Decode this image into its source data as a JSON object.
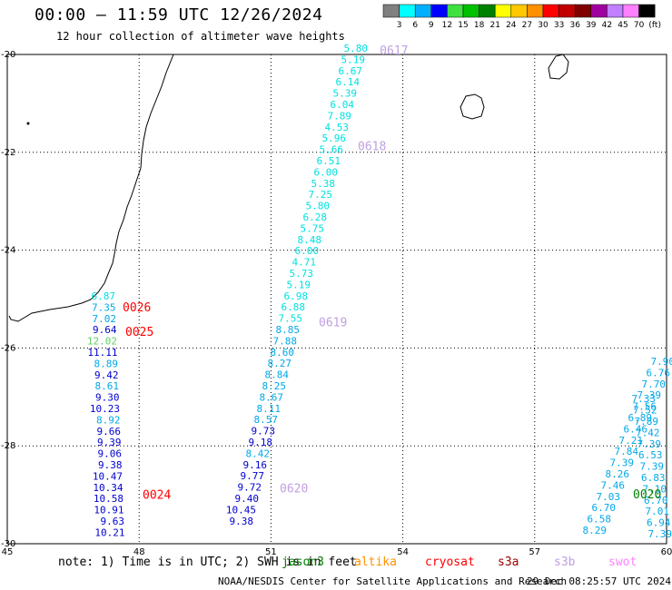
{
  "title": "00:00 – 11:59 UTC 12/26/2024",
  "subtitle": "12 hour collection of altimeter wave heights",
  "legend": {
    "colors": [
      "#808080",
      "#00ffff",
      "#00b0ff",
      "#0000ff",
      "#40e040",
      "#00c000",
      "#008000",
      "#ffff00",
      "#ffc800",
      "#ff9000",
      "#ff0000",
      "#c00000",
      "#800000",
      "#a000a0",
      "#c080ff",
      "#ff80ff",
      "#000000"
    ],
    "labels": [
      "3",
      "6",
      "9",
      "12",
      "15",
      "18",
      "21",
      "24",
      "27",
      "30",
      "33",
      "36",
      "39",
      "42",
      "45",
      "70",
      "(ft)"
    ]
  },
  "axes": {
    "lon_ticks": [
      "45",
      "48",
      "51",
      "54",
      "57",
      "60"
    ],
    "lat_ticks": [
      "-20",
      "-22",
      "-24",
      "-26",
      "-28",
      "-30"
    ]
  },
  "note": {
    "prefix": "note: 1) Time is in UTC; 2) SWH is in feet",
    "missions": [
      {
        "name": "jason3",
        "color": "#008000"
      },
      {
        "name": "altika",
        "color": "#ff9000"
      },
      {
        "name": "cryosat",
        "color": "#ff0000"
      },
      {
        "name": "s3a",
        "color": "#a00000"
      },
      {
        "name": "s3b",
        "color": "#c0a0e0"
      },
      {
        "name": "swot",
        "color": "#ff80ff"
      }
    ]
  },
  "footer": "NOAA/NESDIS Center for Satellite Applications and Research",
  "date_stamp": "29 Dec 08:25:57 UTC 2024",
  "colors": {
    "c6": "#00e0e0",
    "c9": "#00a8e8",
    "c12": "#0000d0",
    "c15": "#60d060",
    "c21": "#008000",
    "cryosat": "#ff0000",
    "s3b": "#c0a0e0"
  },
  "tracks": [
    {
      "id": "left",
      "time_labels": [
        {
          "text": "0026",
          "lat": -25.18,
          "color": "cryosat"
        },
        {
          "text": "0025",
          "lat": -25.68,
          "color": "cryosat"
        },
        {
          "text": "0024",
          "lat": -29.01,
          "color": "cryosat"
        }
      ],
      "points": [
        {
          "v": "6.87",
          "c": "c6"
        },
        {
          "v": "7.35",
          "c": "c9"
        },
        {
          "v": "7.02",
          "c": "c9"
        },
        {
          "v": "9.64",
          "c": "c12"
        },
        {
          "v": "12.02",
          "c": "c15"
        },
        {
          "v": "11.11",
          "c": "c12"
        },
        {
          "v": "8.89",
          "c": "c9"
        },
        {
          "v": "9.42",
          "c": "c12"
        },
        {
          "v": "8.61",
          "c": "c9"
        },
        {
          "v": "9.30",
          "c": "c12"
        },
        {
          "v": "10.23",
          "c": "c12"
        },
        {
          "v": "8.92",
          "c": "c9"
        },
        {
          "v": "9.66",
          "c": "c12"
        },
        {
          "v": "9.39",
          "c": "c12"
        },
        {
          "v": "9.06",
          "c": "c12"
        },
        {
          "v": "9.38",
          "c": "c12"
        },
        {
          "v": "10.47",
          "c": "c12"
        },
        {
          "v": "10.34",
          "c": "c12"
        },
        {
          "v": "10.58",
          "c": "c12"
        },
        {
          "v": "10.91",
          "c": "c12"
        },
        {
          "v": "9.63",
          "c": "c12"
        },
        {
          "v": "10.21",
          "c": "c12"
        }
      ]
    },
    {
      "id": "middle",
      "time_labels": [
        {
          "text": "0617",
          "lat": -19.93,
          "color": "s3b"
        },
        {
          "text": "0618",
          "lat": -21.88,
          "color": "s3b"
        },
        {
          "text": "0619",
          "lat": -25.48,
          "color": "s3b"
        },
        {
          "text": "0620",
          "lat": -28.88,
          "color": "s3b"
        }
      ],
      "points": [
        {
          "v": "5.80",
          "c": "c6"
        },
        {
          "v": "5.19",
          "c": "c6"
        },
        {
          "v": "6.67",
          "c": "c6"
        },
        {
          "v": "6.14",
          "c": "c6"
        },
        {
          "v": "5.39",
          "c": "c6"
        },
        {
          "v": "6.04",
          "c": "c6"
        },
        {
          "v": "7.89",
          "c": "c6"
        },
        {
          "v": "4.53",
          "c": "c6"
        },
        {
          "v": "5.96",
          "c": "c6"
        },
        {
          "v": "5.66",
          "c": "c6"
        },
        {
          "v": "6.51",
          "c": "c6"
        },
        {
          "v": "6.00",
          "c": "c6"
        },
        {
          "v": "5.38",
          "c": "c6"
        },
        {
          "v": "7.25",
          "c": "c6"
        },
        {
          "v": "5.80",
          "c": "c6"
        },
        {
          "v": "6.28",
          "c": "c6"
        },
        {
          "v": "5.75",
          "c": "c6"
        },
        {
          "v": "8.48",
          "c": "c6"
        },
        {
          "v": "6.00",
          "c": "c6"
        },
        {
          "v": "4.71",
          "c": "c6"
        },
        {
          "v": "5.73",
          "c": "c6"
        },
        {
          "v": "5.19",
          "c": "c6"
        },
        {
          "v": "6.98",
          "c": "c6"
        },
        {
          "v": "6.88",
          "c": "c6"
        },
        {
          "v": "7.55",
          "c": "c6"
        },
        {
          "v": "8.85",
          "c": "c9"
        },
        {
          "v": "7.88",
          "c": "c9"
        },
        {
          "v": "8.60",
          "c": "c9"
        },
        {
          "v": "8.27",
          "c": "c9"
        },
        {
          "v": "8.84",
          "c": "c9"
        },
        {
          "v": "8.25",
          "c": "c9"
        },
        {
          "v": "8.67",
          "c": "c9"
        },
        {
          "v": "8.11",
          "c": "c9"
        },
        {
          "v": "8.57",
          "c": "c9"
        },
        {
          "v": "9.73",
          "c": "c12"
        },
        {
          "v": "9.18",
          "c": "c12"
        },
        {
          "v": "8.42",
          "c": "c9"
        },
        {
          "v": "9.16",
          "c": "c12"
        },
        {
          "v": "9.77",
          "c": "c12"
        },
        {
          "v": "9.72",
          "c": "c12"
        },
        {
          "v": "9.40",
          "c": "c12"
        },
        {
          "v": "10.45",
          "c": "c12"
        },
        {
          "v": "9.38",
          "c": "c12"
        }
      ]
    },
    {
      "id": "right",
      "time_labels": [
        {
          "text": "0020",
          "lat": -29.0,
          "color": "c21"
        }
      ],
      "points": [
        {
          "v": "7.39",
          "c": "c9"
        },
        {
          "v": "6.94",
          "c": "c9"
        },
        {
          "v": "7.01",
          "c": "c9"
        },
        {
          "v": "6.70",
          "c": "c9"
        },
        {
          "v": "7.10",
          "c": "c9"
        },
        {
          "v": "6.83",
          "c": "c9"
        },
        {
          "v": "7.39",
          "c": "c9"
        },
        {
          "v": "6.53",
          "c": "c9"
        },
        {
          "v": "7.39",
          "c": "c9"
        },
        {
          "v": "7.42",
          "c": "c9"
        },
        {
          "v": "7.89",
          "c": "c9"
        },
        {
          "v": "7.52",
          "c": "c9"
        },
        {
          "v": "7.33",
          "c": "c9"
        }
      ]
    },
    {
      "id": "right2",
      "time_labels": [],
      "points": [
        {
          "v": "8.29",
          "c": "c9"
        },
        {
          "v": "6.58",
          "c": "c9"
        },
        {
          "v": "6.70",
          "c": "c9"
        },
        {
          "v": "7.03",
          "c": "c9"
        },
        {
          "v": "7.46",
          "c": "c9"
        },
        {
          "v": "8.26",
          "c": "c9"
        },
        {
          "v": "7.39",
          "c": "c9"
        },
        {
          "v": "7.84",
          "c": "c9"
        },
        {
          "v": "7.21",
          "c": "c9"
        },
        {
          "v": "6.46",
          "c": "c9"
        },
        {
          "v": "6.89",
          "c": "c9"
        },
        {
          "v": "7.56",
          "c": "c9"
        },
        {
          "v": "7.39",
          "c": "c9"
        },
        {
          "v": "7.70",
          "c": "c9"
        },
        {
          "v": "6.76",
          "c": "c9"
        },
        {
          "v": "7.90",
          "c": "c9"
        }
      ]
    }
  ]
}
